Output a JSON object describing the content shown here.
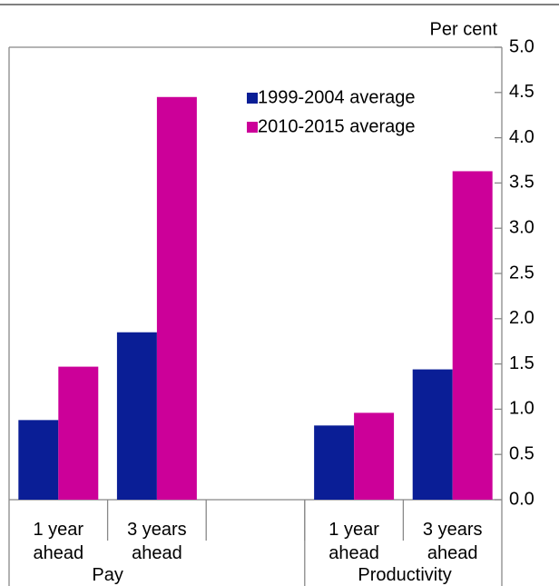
{
  "chart_data": {
    "type": "bar",
    "y_axis_label": "Per cent",
    "categories": [
      "1 year ahead",
      "3 years ahead",
      null,
      "1 year ahead",
      "3 years ahead"
    ],
    "groups": [
      "Pay",
      "Productivity"
    ],
    "series": [
      {
        "name": "1999-2004 average",
        "color": "#0a1e96",
        "values": [
          0.88,
          1.85,
          null,
          0.82,
          1.44
        ]
      },
      {
        "name": "2010-2015 average",
        "color": "#cc0099",
        "values": [
          1.47,
          4.45,
          null,
          0.96,
          3.63
        ]
      }
    ],
    "ylim": [
      0,
      5
    ],
    "yticks": [
      {
        "value": 0,
        "label": "0.0"
      },
      {
        "value": 0.5,
        "label": "0.5"
      },
      {
        "value": 1,
        "label": "1.0"
      },
      {
        "value": 1.5,
        "label": "1.5"
      },
      {
        "value": 2,
        "label": "2.0"
      },
      {
        "value": 2.5,
        "label": "2.5"
      },
      {
        "value": 3,
        "label": "3.0"
      },
      {
        "value": 3.5,
        "label": "3.5"
      },
      {
        "value": 4,
        "label": "4.0"
      },
      {
        "value": 4.5,
        "label": "4.5"
      },
      {
        "value": 5,
        "label": "5.0"
      }
    ],
    "legend": "top-right"
  }
}
